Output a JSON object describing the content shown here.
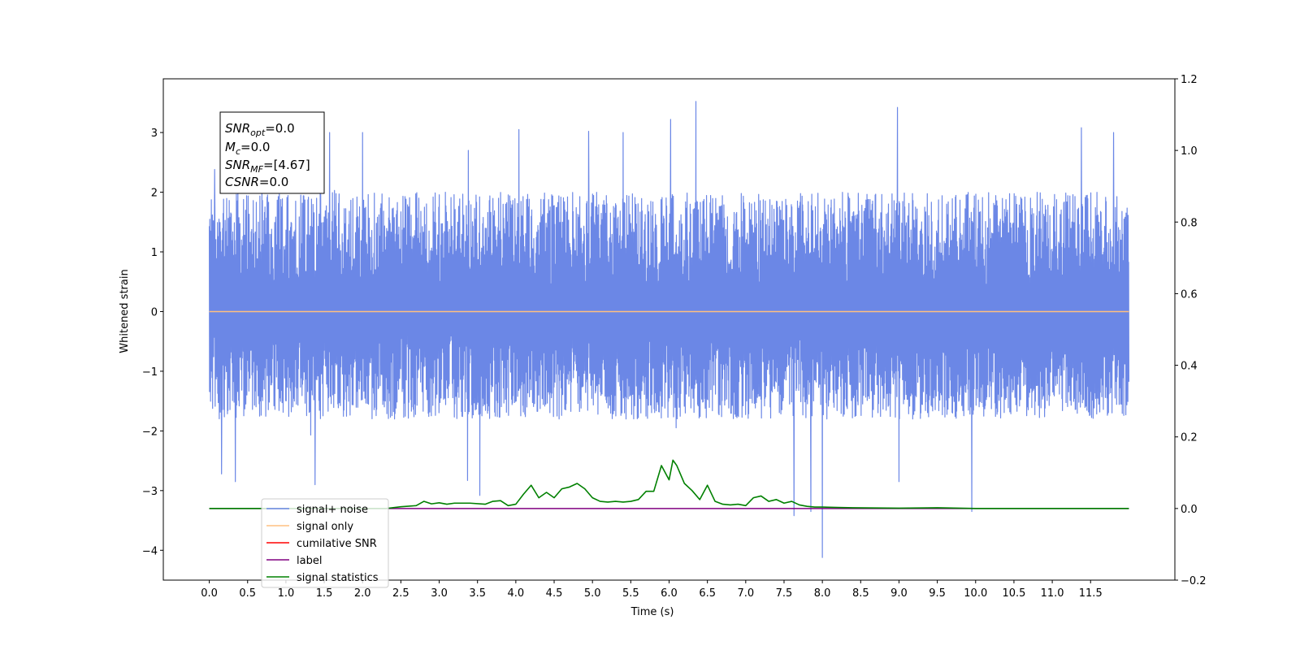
{
  "chart_data": {
    "type": "line",
    "xlabel": "Time (s)",
    "ylabel": "Whitened strain",
    "xlim": [
      -0.6,
      12.6
    ],
    "ylim": [
      -4.5,
      3.9
    ],
    "y2lim": [
      -0.2,
      1.2
    ],
    "x_ticks": [
      0.0,
      0.5,
      1.0,
      1.5,
      2.0,
      2.5,
      3.0,
      3.5,
      4.0,
      4.5,
      5.0,
      5.5,
      6.0,
      6.5,
      7.0,
      7.5,
      8.0,
      8.5,
      9.0,
      9.5,
      10.0,
      10.5,
      11.0,
      11.5
    ],
    "x_tick_labels": [
      "0.0",
      "0.5",
      "1.0",
      "1.5",
      "2.0",
      "2.5",
      "3.0",
      "3.5",
      "4.0",
      "4.5",
      "5.0",
      "5.5",
      "6.0",
      "6.5",
      "7.0",
      "7.5",
      "8.0",
      "8.5",
      "9.0",
      "9.5",
      "10.0",
      "10.5",
      "11.0",
      "11.5"
    ],
    "y_ticks": [
      -4,
      -3,
      -2,
      -1,
      0,
      1,
      2,
      3
    ],
    "y_tick_labels": [
      "−4",
      "−3",
      "−2",
      "−1",
      "0",
      "1",
      "2",
      "3"
    ],
    "y2_ticks": [
      -0.2,
      0.0,
      0.2,
      0.4,
      0.6,
      0.8,
      1.0,
      1.2
    ],
    "y2_tick_labels": [
      "−0.2",
      "0.0",
      "0.2",
      "0.4",
      "0.6",
      "0.8",
      "1.0",
      "1.2"
    ],
    "grid": false,
    "legend_position": "lower-left",
    "annotation": {
      "lines": [
        {
          "base": "SNR",
          "sub": "opt",
          "value": "=0.0"
        },
        {
          "base": "M",
          "sub": "c",
          "value": "=0.0"
        },
        {
          "base": "SNR",
          "sub": "MF",
          "value": "=[4.67]"
        },
        {
          "base": "CSNR",
          "sub": "",
          "value": "=0.0"
        }
      ]
    },
    "series": [
      {
        "name": "signal+ noise",
        "color": "#6b87e6",
        "axis": "left",
        "kind": "noise",
        "x_range": [
          0.0,
          12.0
        ],
        "typical_envelope": [
          -1.8,
          2.0
        ],
        "peaks": [
          {
            "x": 0.07,
            "y": 2.38
          },
          {
            "x": 0.16,
            "y": -2.72
          },
          {
            "x": 0.34,
            "y": -2.85
          },
          {
            "x": 1.38,
            "y": -2.9
          },
          {
            "x": 1.57,
            "y": 3.0
          },
          {
            "x": 2.0,
            "y": 3.0
          },
          {
            "x": 3.37,
            "y": -2.83
          },
          {
            "x": 3.38,
            "y": 2.7
          },
          {
            "x": 3.53,
            "y": -3.08
          },
          {
            "x": 4.04,
            "y": 3.05
          },
          {
            "x": 4.95,
            "y": 3.02
          },
          {
            "x": 5.4,
            "y": 3.0
          },
          {
            "x": 6.02,
            "y": 3.22
          },
          {
            "x": 6.35,
            "y": 3.52
          },
          {
            "x": 7.63,
            "y": -3.42
          },
          {
            "x": 7.85,
            "y": -3.35
          },
          {
            "x": 8.0,
            "y": -4.12
          },
          {
            "x": 8.98,
            "y": 3.42
          },
          {
            "x": 9.0,
            "y": -2.85
          },
          {
            "x": 9.95,
            "y": -3.35
          },
          {
            "x": 11.38,
            "y": 3.08
          },
          {
            "x": 11.8,
            "y": 3.0
          }
        ]
      },
      {
        "name": "signal only",
        "color": "#ffc080",
        "axis": "left",
        "x": [
          0.0,
          12.0
        ],
        "y": [
          0.0,
          0.0
        ]
      },
      {
        "name": "cumilative SNR",
        "color": "#ff0000",
        "axis": "right",
        "x": [],
        "y": []
      },
      {
        "name": "label",
        "color": "#800080",
        "axis": "right",
        "x": [
          0.0,
          12.0
        ],
        "y": [
          0.0,
          0.0
        ]
      },
      {
        "name": "signal statistics",
        "color": "#008000",
        "axis": "right",
        "x": [
          0.0,
          1.0,
          2.0,
          2.3,
          2.5,
          2.7,
          2.8,
          2.9,
          3.0,
          3.1,
          3.2,
          3.4,
          3.6,
          3.7,
          3.8,
          3.9,
          4.0,
          4.1,
          4.2,
          4.3,
          4.4,
          4.5,
          4.6,
          4.7,
          4.8,
          4.9,
          5.0,
          5.1,
          5.2,
          5.3,
          5.4,
          5.5,
          5.6,
          5.7,
          5.8,
          5.9,
          6.0,
          6.05,
          6.1,
          6.2,
          6.3,
          6.4,
          6.5,
          6.6,
          6.7,
          6.8,
          6.9,
          7.0,
          7.1,
          7.2,
          7.3,
          7.4,
          7.5,
          7.6,
          7.7,
          7.8,
          7.9,
          8.0,
          8.2,
          8.4,
          9.0,
          9.5,
          10.0,
          11.0,
          12.0
        ],
        "y": [
          0.0,
          0.0,
          0.0,
          0.0,
          0.005,
          0.008,
          0.02,
          0.013,
          0.016,
          0.012,
          0.015,
          0.015,
          0.012,
          0.02,
          0.022,
          0.008,
          0.012,
          0.04,
          0.065,
          0.03,
          0.045,
          0.03,
          0.055,
          0.06,
          0.07,
          0.055,
          0.03,
          0.02,
          0.018,
          0.02,
          0.018,
          0.02,
          0.025,
          0.048,
          0.048,
          0.12,
          0.08,
          0.135,
          0.12,
          0.07,
          0.05,
          0.025,
          0.065,
          0.02,
          0.012,
          0.01,
          0.012,
          0.008,
          0.03,
          0.035,
          0.02,
          0.025,
          0.015,
          0.02,
          0.01,
          0.006,
          0.004,
          0.004,
          0.003,
          0.002,
          0.001,
          0.002,
          0.0,
          0.0,
          0.0
        ]
      }
    ]
  }
}
